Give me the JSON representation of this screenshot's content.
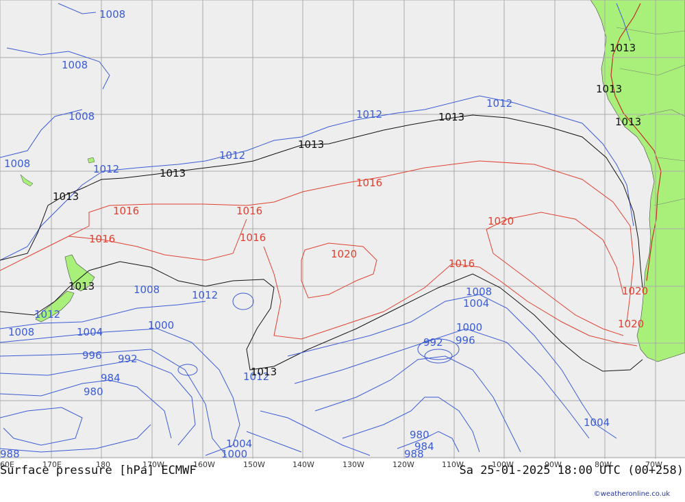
{
  "map": {
    "title": "Surface pressure [hPa] ECMWF",
    "valid_time": "Sa 25-01-2025 18:00 UTC (00+258)",
    "credit": "©weatheronline.co.uk",
    "longitude_labels": [
      "60E",
      "170E",
      "180",
      "170W",
      "160W",
      "150W",
      "140W",
      "130W",
      "120W",
      "110W",
      "100W",
      "90W",
      "80W",
      "70W"
    ],
    "colors": {
      "ocean": "#eeeeee",
      "land": "#a8f07a",
      "grid": "#aaaaaa",
      "isobar_low": "#3a5bd6",
      "isobar_high": "#e04030",
      "isobar_ref": "#111111"
    },
    "isobar_labels": {
      "l1008a": "1008",
      "l1008b": "1008",
      "l1008c": "1008",
      "l1008d": "1008",
      "l1012a": "1012",
      "l1012b": "1012",
      "l1012c": "1012",
      "l1012d": "1012",
      "l1013a": "1013",
      "l1013b": "1013",
      "l1013c": "1013",
      "l1013d": "1013",
      "l1013e": "1013",
      "l1013f": "1013",
      "l1013g": "1013",
      "l1016a": "1016",
      "l1016b": "1016",
      "l1016c": "1016",
      "l1016d": "1016",
      "l1016e": "1016",
      "l1020a": "1020",
      "l1020b": "1020",
      "l1020c": "1020",
      "l1012e": "1012",
      "l1012f": "1012",
      "l1013h": "1013",
      "l1008e": "1008",
      "l1008f": "1008",
      "l1008g": "1008",
      "l1004a": "1004",
      "l1004b": "1004",
      "l1004c": "1004",
      "l1004d": "1004",
      "l1000a": "1000",
      "l1000b": "1000",
      "l1000c": "1000",
      "l996a": "996",
      "l996b": "996",
      "l992a": "992",
      "l992b": "992",
      "l988a": "988",
      "l988b": "988",
      "l984a": "984",
      "l984b": "984",
      "l980a": "980",
      "l980b": "980",
      "l1012g": "1012",
      "l1013i": "1013",
      "l1016f": "1016",
      "l1020d": "1020"
    }
  }
}
